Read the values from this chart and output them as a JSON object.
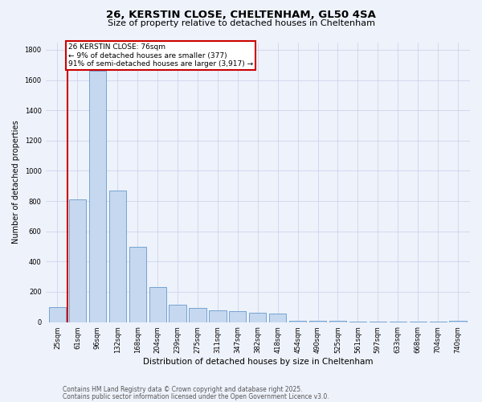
{
  "title1": "26, KERSTIN CLOSE, CHELTENHAM, GL50 4SA",
  "title2": "Size of property relative to detached houses in Cheltenham",
  "xlabel": "Distribution of detached houses by size in Cheltenham",
  "ylabel": "Number of detached properties",
  "categories": [
    "25sqm",
    "61sqm",
    "96sqm",
    "132sqm",
    "168sqm",
    "204sqm",
    "239sqm",
    "275sqm",
    "311sqm",
    "347sqm",
    "382sqm",
    "418sqm",
    "454sqm",
    "490sqm",
    "525sqm",
    "561sqm",
    "597sqm",
    "633sqm",
    "668sqm",
    "704sqm",
    "740sqm"
  ],
  "values": [
    100,
    810,
    1660,
    870,
    500,
    230,
    115,
    95,
    80,
    70,
    60,
    55,
    10,
    10,
    8,
    5,
    4,
    3,
    2,
    2,
    10
  ],
  "bar_color": "#c5d8f0",
  "bar_edge_color": "#6699cc",
  "vline_color": "#cc0000",
  "ann_box_color": "#cc0000",
  "annotation_text": "26 KERSTIN CLOSE: 76sqm\n← 9% of detached houses are smaller (377)\n91% of semi-detached houses are larger (3,917) →",
  "vline_x": 0.5,
  "ylim": [
    0,
    1850
  ],
  "yticks": [
    0,
    200,
    400,
    600,
    800,
    1000,
    1200,
    1400,
    1600,
    1800
  ],
  "footer1": "Contains HM Land Registry data © Crown copyright and database right 2025.",
  "footer2": "Contains public sector information licensed under the Open Government Licence v3.0.",
  "bg_color": "#eef2fb",
  "grid_color": "#c8cfe8",
  "title1_fontsize": 9.5,
  "title2_fontsize": 8,
  "ylabel_fontsize": 7,
  "xlabel_fontsize": 7.5,
  "tick_fontsize": 6,
  "footer_fontsize": 5.5,
  "ann_fontsize": 6.5
}
